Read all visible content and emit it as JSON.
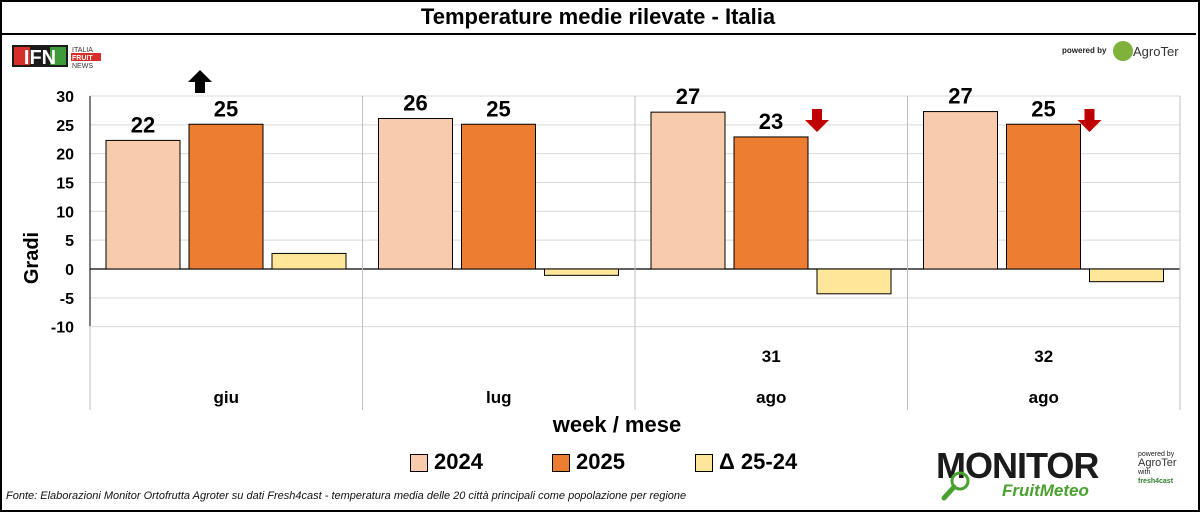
{
  "chart_data": {
    "type": "bar",
    "title": "Temperature medie rilevate - Italia",
    "ylabel": "Gradi",
    "xlabel": "week / mese",
    "ylim": [
      -10,
      30
    ],
    "yticks": [
      30,
      25,
      20,
      15,
      10,
      5,
      0,
      -5,
      -10
    ],
    "ytick_labels": [
      "30",
      "25",
      "20",
      "15",
      "10",
      "5",
      "0",
      "-5",
      "-10"
    ],
    "categories": [
      {
        "week": "",
        "month": "giu"
      },
      {
        "week": "",
        "month": "lug"
      },
      {
        "week": "31",
        "month": "ago"
      },
      {
        "week": "32",
        "month": "ago"
      }
    ],
    "series": [
      {
        "name": "2024",
        "color": "#f8cbad",
        "values": [
          22.3,
          26.1,
          27.2,
          27.3
        ],
        "labels": [
          "22",
          "26",
          "27",
          "27"
        ]
      },
      {
        "name": "2025",
        "color": "#ed7d31",
        "values": [
          25.1,
          25.1,
          22.9,
          25.1
        ],
        "labels": [
          "25",
          "25",
          "23",
          "25"
        ]
      },
      {
        "name": "Δ 25-24",
        "color": "#ffe699",
        "values": [
          2.7,
          -1.1,
          -4.3,
          -2.2
        ],
        "labels": [
          "",
          "",
          "",
          ""
        ]
      }
    ],
    "trend_arrows": [
      {
        "category": 0,
        "direction": "up",
        "color": "#000000"
      },
      {
        "category": 1,
        "direction": "none",
        "color": ""
      },
      {
        "category": 2,
        "direction": "down",
        "color": "#c00000"
      },
      {
        "category": 3,
        "direction": "down",
        "color": "#c00000"
      }
    ],
    "grid": true,
    "legend": "bottom-center"
  },
  "logos": {
    "ifn_text": "IFN",
    "ifn_sub": [
      "ITALIA",
      "FRUIT",
      "NEWS"
    ],
    "powered_by": "powered by",
    "agroter": "AgroTer",
    "monitor": "MONITOR",
    "fruitmeteo": "FruitMeteo",
    "side_powered": "powered by",
    "side_agroter": "AgroTer",
    "side_with": "with",
    "fresh4cast": "fresh4cast"
  },
  "source": "Fonte: Elaborazioni Monitor Ortofrutta Agroter su dati Fresh4cast - temperatura media delle 20 città principali come popolazione per regione"
}
